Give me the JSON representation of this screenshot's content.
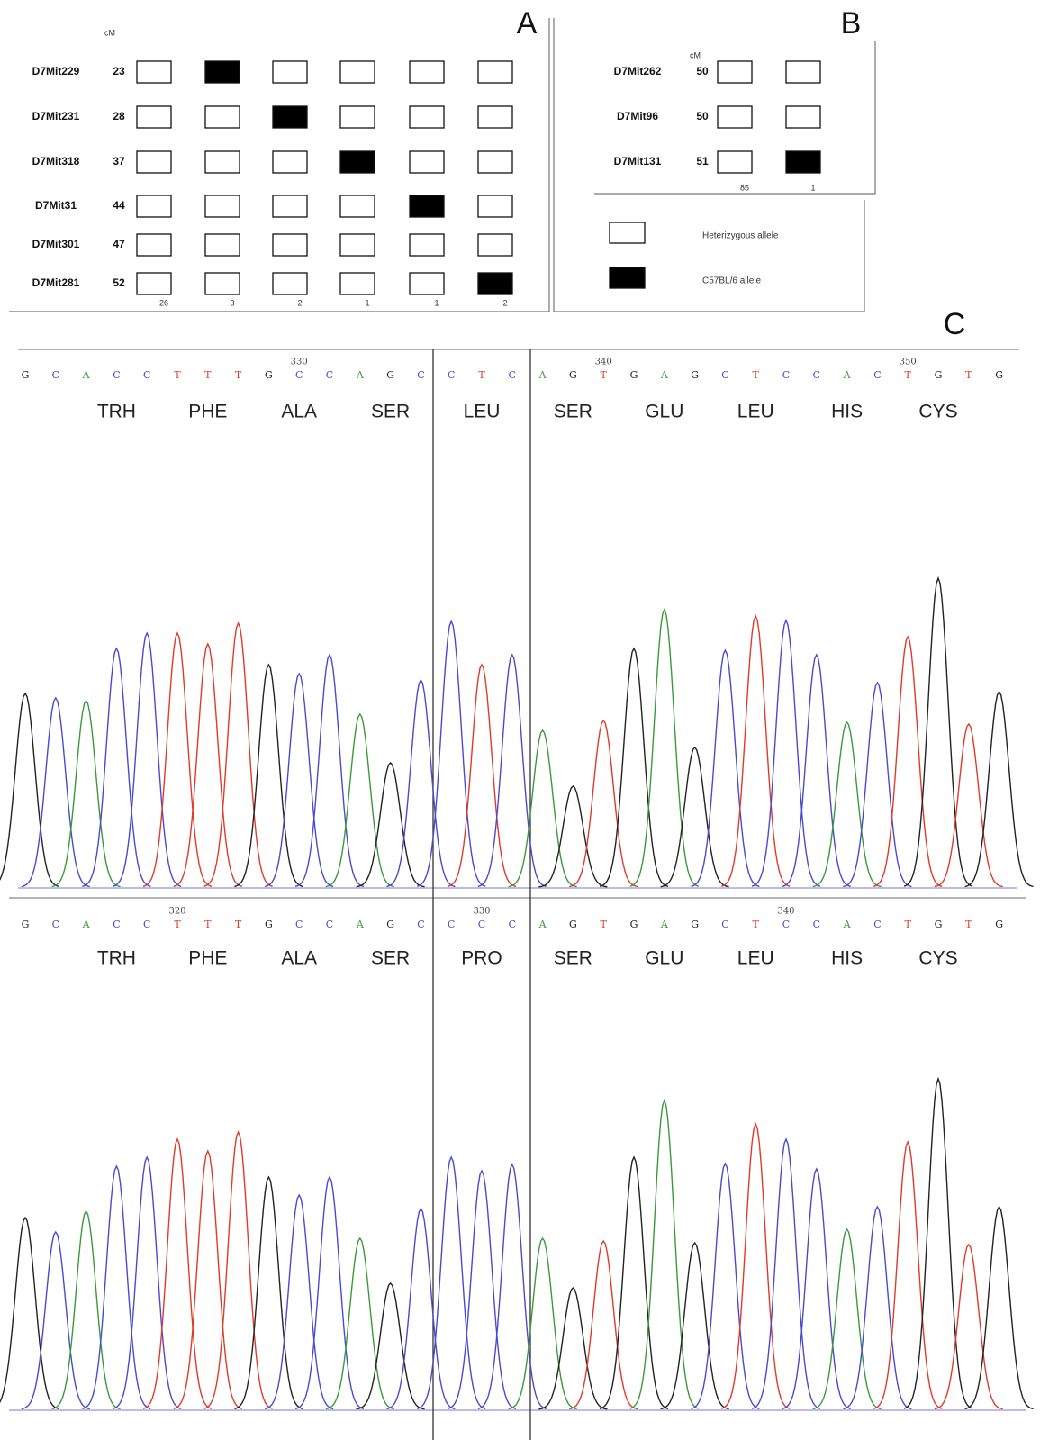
{
  "legend": {
    "items": [
      {
        "label": "Heterizygous allele",
        "fill": "#ffffff"
      },
      {
        "label": "C57BL/6 allele",
        "fill": "#000000"
      }
    ]
  },
  "panel_a": {
    "label": "A",
    "cm_header": "cM",
    "rows": [
      {
        "marker": "D7Mit229",
        "cm": 23,
        "cells": [
          0,
          1,
          0,
          0,
          0,
          0
        ]
      },
      {
        "marker": "D7Mit231",
        "cm": 28,
        "cells": [
          0,
          0,
          1,
          0,
          0,
          0
        ]
      },
      {
        "marker": "D7Mit318",
        "cm": 37,
        "cells": [
          0,
          0,
          0,
          1,
          0,
          0
        ]
      },
      {
        "marker": "D7Mit31",
        "cm": 44,
        "cells": [
          0,
          0,
          0,
          0,
          1,
          0
        ]
      },
      {
        "marker": "D7Mit301",
        "cm": 47,
        "cells": [
          0,
          0,
          0,
          0,
          0,
          0
        ]
      },
      {
        "marker": "D7Mit281",
        "cm": 52,
        "cells": [
          0,
          0,
          0,
          0,
          0,
          1
        ]
      }
    ],
    "counts": [
      26,
      3,
      2,
      1,
      1,
      2
    ]
  },
  "panel_b": {
    "label": "B",
    "cm_header": "cM",
    "rows": [
      {
        "marker": "D7Mit262",
        "cm": 50,
        "cells": [
          0,
          0
        ]
      },
      {
        "marker": "D7Mit96",
        "cm": 50,
        "cells": [
          0,
          0
        ]
      },
      {
        "marker": "D7Mit131",
        "cm": 51,
        "cells": [
          0,
          1
        ]
      }
    ],
    "counts": [
      85,
      1
    ]
  },
  "panel_c": {
    "label": "C",
    "base_colors": {
      "A": "#3a9a3a",
      "C": "#4a4ad0",
      "G": "#222222",
      "T": "#e03a2a"
    },
    "traces": [
      {
        "bases": [
          "G",
          "C",
          "A",
          "C",
          "C",
          "T",
          "T",
          "T",
          "G",
          "C",
          "C",
          "A",
          "G",
          "C",
          "C",
          "T",
          "C",
          "A",
          "G",
          "T",
          "G",
          "A",
          "G",
          "C",
          "T",
          "C",
          "C",
          "A",
          "C",
          "T",
          "G",
          "T",
          "G"
        ],
        "position_labels": [
          null,
          null,
          null,
          null,
          null,
          null,
          null,
          null,
          null,
          "330",
          null,
          null,
          null,
          null,
          null,
          null,
          null,
          null,
          null,
          "340",
          null,
          null,
          null,
          null,
          null,
          null,
          null,
          null,
          null,
          "350",
          null,
          null,
          null
        ],
        "amino_acids": [
          "TRH",
          "PHE",
          "ALA",
          "SER",
          "LEU",
          "SER",
          "GLU",
          "LEU",
          "HIS",
          "CYS"
        ],
        "peak_heights": [
          215,
          210,
          207,
          265,
          282,
          282,
          270,
          293,
          247,
          237,
          258,
          192,
          138,
          230,
          295,
          247,
          258,
          174,
          112,
          185,
          265,
          308,
          155,
          263,
          301,
          296,
          258,
          183,
          227,
          278,
          343,
          181,
          217
        ]
      },
      {
        "bases": [
          "G",
          "C",
          "A",
          "C",
          "C",
          "T",
          "T",
          "T",
          "G",
          "C",
          "C",
          "A",
          "G",
          "C",
          "C",
          "C",
          "C",
          "A",
          "G",
          "T",
          "G",
          "A",
          "G",
          "C",
          "T",
          "C",
          "C",
          "A",
          "C",
          "T",
          "G",
          "T",
          "G"
        ],
        "position_labels": [
          null,
          null,
          null,
          null,
          null,
          "320",
          null,
          null,
          null,
          null,
          null,
          null,
          null,
          null,
          null,
          "330",
          null,
          null,
          null,
          null,
          null,
          null,
          null,
          null,
          null,
          "340",
          null,
          null,
          null,
          null,
          null,
          null,
          null
        ],
        "amino_acids": [
          "TRH",
          "PHE",
          "ALA",
          "SER",
          "PRO",
          "SER",
          "GLU",
          "LEU",
          "HIS",
          "CYS"
        ],
        "peak_heights": [
          213,
          197,
          220,
          270,
          280,
          300,
          287,
          308,
          258,
          238,
          258,
          190,
          140,
          223,
          280,
          265,
          272,
          190,
          135,
          187,
          280,
          343,
          185,
          273,
          317,
          300,
          267,
          200,
          225,
          297,
          367,
          183,
          225
        ]
      }
    ]
  }
}
